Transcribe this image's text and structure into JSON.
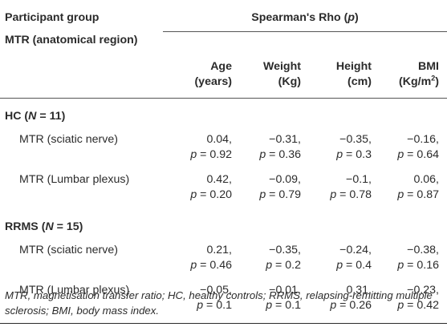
{
  "header": {
    "col_group_label": "Participant group",
    "col_region_label": "MTR (anatomical region)",
    "spearman_prefix": "Spearman's Rho (",
    "spearman_p": "p",
    "spearman_suffix": ")",
    "columns": [
      {
        "line1": "Age",
        "line2": "(years)"
      },
      {
        "line1": "Weight",
        "line2": "(Kg)"
      },
      {
        "line1": "Height",
        "line2": "(cm)"
      },
      {
        "line1": "BMI",
        "line2_base": "(Kg/m",
        "line2_sup": "2",
        "line2_end": ")"
      }
    ]
  },
  "groups": [
    {
      "name_prefix": "HC (",
      "name_n": "N",
      "name_suffix": " = 11)",
      "rows": [
        {
          "label": "MTR (sciatic nerve)",
          "cells": [
            {
              "rho": "0.04,",
              "p": "= 0.92"
            },
            {
              "rho": "−0.31,",
              "p": "= 0.36"
            },
            {
              "rho": "−0.35,",
              "p": "= 0.3"
            },
            {
              "rho": "−0.16,",
              "p": "= 0.64"
            }
          ]
        },
        {
          "label": "MTR (Lumbar plexus)",
          "cells": [
            {
              "rho": "0.42,",
              "p": "= 0.20"
            },
            {
              "rho": "−0.09,",
              "p": "= 0.79"
            },
            {
              "rho": "−0.1,",
              "p": "= 0.78"
            },
            {
              "rho": "0.06,",
              "p": "= 0.87"
            }
          ]
        }
      ]
    },
    {
      "name_prefix": "RRMS (",
      "name_n": "N",
      "name_suffix": " = 15)",
      "rows": [
        {
          "label": "MTR (sciatic nerve)",
          "cells": [
            {
              "rho": "0.21,",
              "p": "= 0.46"
            },
            {
              "rho": "−0.35,",
              "p": "= 0.2"
            },
            {
              "rho": "−0.24,",
              "p": "= 0.4"
            },
            {
              "rho": "−0.38,",
              "p": "= 0.16"
            }
          ]
        },
        {
          "label": "MTR (Lumbar plexus)",
          "cells": [
            {
              "rho": "−0.05,",
              "p": "= 0.1"
            },
            {
              "rho": "−0.01,",
              "p": "= 0.1"
            },
            {
              "rho": "0.31,",
              "p": "= 0.26"
            },
            {
              "rho": "−0.23,",
              "p": "= 0.42"
            }
          ]
        }
      ]
    }
  ],
  "p_symbol": "p",
  "footnote": "MTR, magnetisation transfer ratio; HC, healthy controls; RRMS, relapsing-remitting multiple sclerosis; BMI, body mass index."
}
